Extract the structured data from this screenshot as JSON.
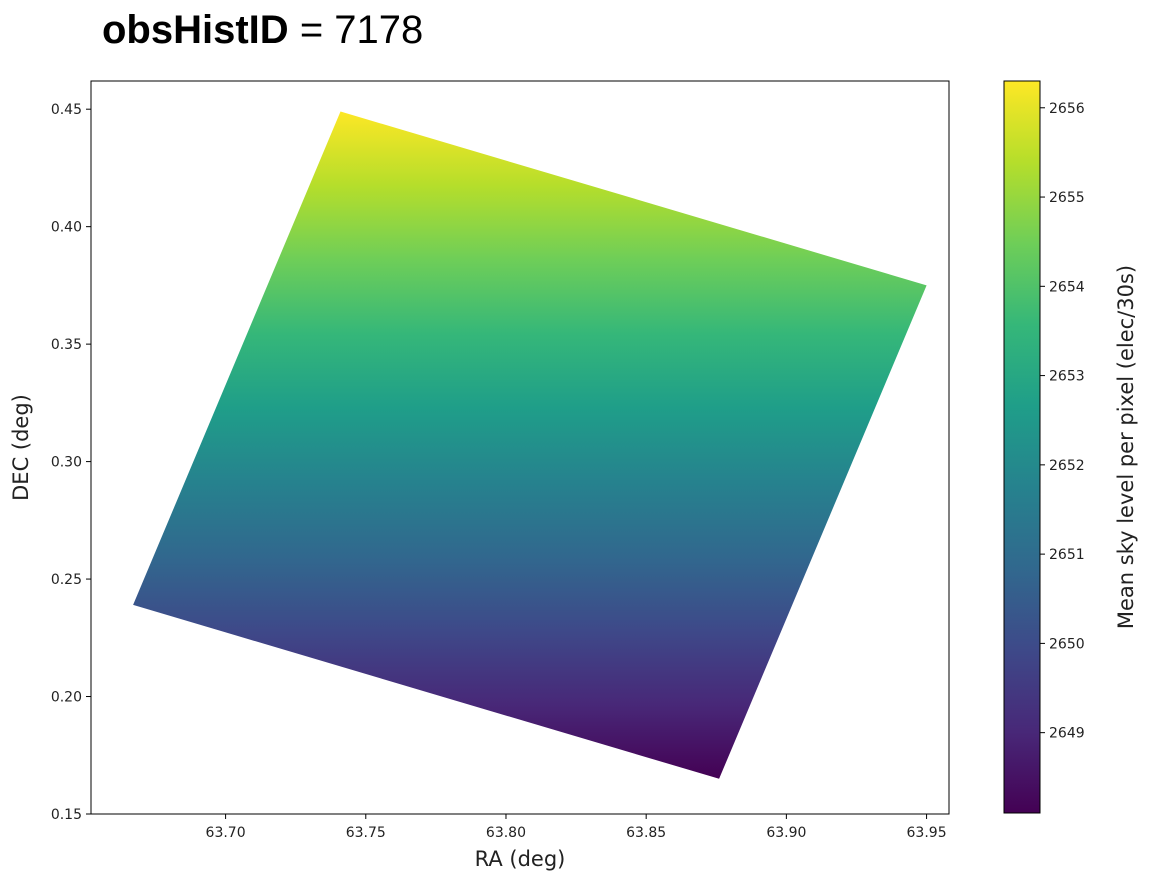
{
  "title": {
    "key": "obsHistID",
    "equals": "=",
    "value": "7178"
  },
  "colors": {
    "colormap": [
      "#440154",
      "#482878",
      "#3e4989",
      "#31688e",
      "#26828e",
      "#1f9e89",
      "#35b779",
      "#6ece58",
      "#b5de2b",
      "#fde725"
    ],
    "axes_edge": "#000000",
    "text": "#222222"
  },
  "chart_data": {
    "type": "heatmap",
    "xlabel": "RA (deg)",
    "ylabel": "DEC (deg)",
    "colorbar_label": "Mean sky level per pixel (elec/30s)",
    "colormap": "viridis",
    "xlim": [
      63.652,
      63.958
    ],
    "ylim": [
      0.15,
      0.462
    ],
    "xticks": [
      "63.70",
      "63.75",
      "63.80",
      "63.85",
      "63.90",
      "63.95"
    ],
    "yticks": [
      "0.15",
      "0.20",
      "0.25",
      "0.30",
      "0.35",
      "0.40",
      "0.45"
    ],
    "colorbar_range": [
      2648.1,
      2656.3
    ],
    "colorbar_ticks": [
      "2649",
      "2650",
      "2651",
      "2652",
      "2653",
      "2654",
      "2655",
      "2656"
    ],
    "region_corners": [
      {
        "ra": 63.741,
        "dec": 0.449
      },
      {
        "ra": 63.95,
        "dec": 0.375
      },
      {
        "ra": 63.876,
        "dec": 0.165
      },
      {
        "ra": 63.667,
        "dec": 0.239
      }
    ],
    "value_at_top_dec": 2656.2,
    "value_at_bottom_dec": 2648.2
  }
}
